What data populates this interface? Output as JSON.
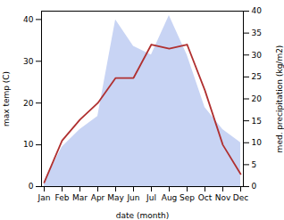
{
  "chart_data": {
    "type": "line",
    "categories": [
      "Jan",
      "Feb",
      "Mar",
      "Apr",
      "May",
      "Jun",
      "Jul",
      "Aug",
      "Sep",
      "Oct",
      "Nov",
      "Dec"
    ],
    "xlabel": "date (month)",
    "ylabel": "max temp (C)",
    "y2label": "med. precipitation (kg/m2)",
    "series": [
      {
        "type": "area",
        "color": "#c8d4f4",
        "axis": "y2",
        "values": [
          1,
          9,
          13,
          16,
          38,
          32,
          30,
          39,
          30,
          18,
          13,
          10
        ]
      },
      {
        "type": "line",
        "color": "#b03030",
        "values": [
          1,
          11,
          16,
          20,
          26,
          26,
          34,
          33,
          34,
          23,
          10,
          3
        ]
      }
    ],
    "ylim": [
      0,
      42
    ],
    "yticks": [
      0,
      10,
      20,
      30,
      40
    ],
    "y2lim": [
      0,
      40
    ],
    "y2ticks": [
      0,
      5,
      10,
      15,
      20,
      25,
      30,
      35,
      40
    ],
    "grid": false
  }
}
